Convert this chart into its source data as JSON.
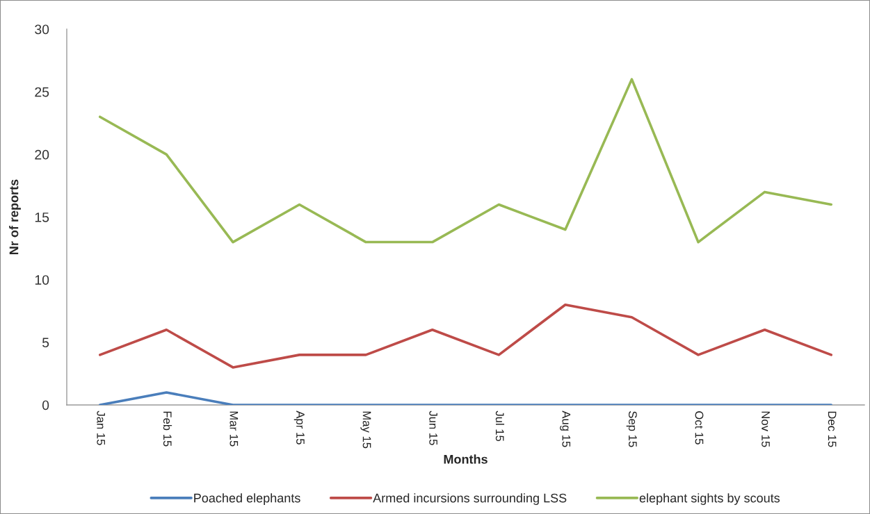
{
  "chart_data": {
    "type": "line",
    "xlabel": "Months",
    "ylabel": "Nr of reports",
    "categories": [
      "Jan 15",
      "Feb 15",
      "Mar 15",
      "Apr 15",
      "May 15",
      "Jun 15",
      "Jul 15",
      "Aug 15",
      "Sep 15",
      "Oct 15",
      "Nov 15",
      "Dec 15"
    ],
    "series": [
      {
        "name": "Poached elephants",
        "color": "#4a7ebb",
        "values": [
          0,
          1,
          0,
          0,
          0,
          0,
          0,
          0,
          0,
          0,
          0,
          0
        ]
      },
      {
        "name": "Armed incursions surrounding LSS",
        "color": "#be4b48",
        "values": [
          4,
          6,
          3,
          4,
          4,
          6,
          4,
          8,
          7,
          4,
          6,
          4
        ]
      },
      {
        "name": "elephant sights by scouts",
        "color": "#98b954",
        "values": [
          23,
          20,
          13,
          16,
          13,
          13,
          16,
          14,
          26,
          13,
          17,
          16
        ]
      }
    ],
    "ylim": [
      0,
      30
    ],
    "yticks": [
      0,
      5,
      10,
      15,
      20,
      25,
      30
    ],
    "legend": "bottom",
    "line_style": "solid"
  }
}
